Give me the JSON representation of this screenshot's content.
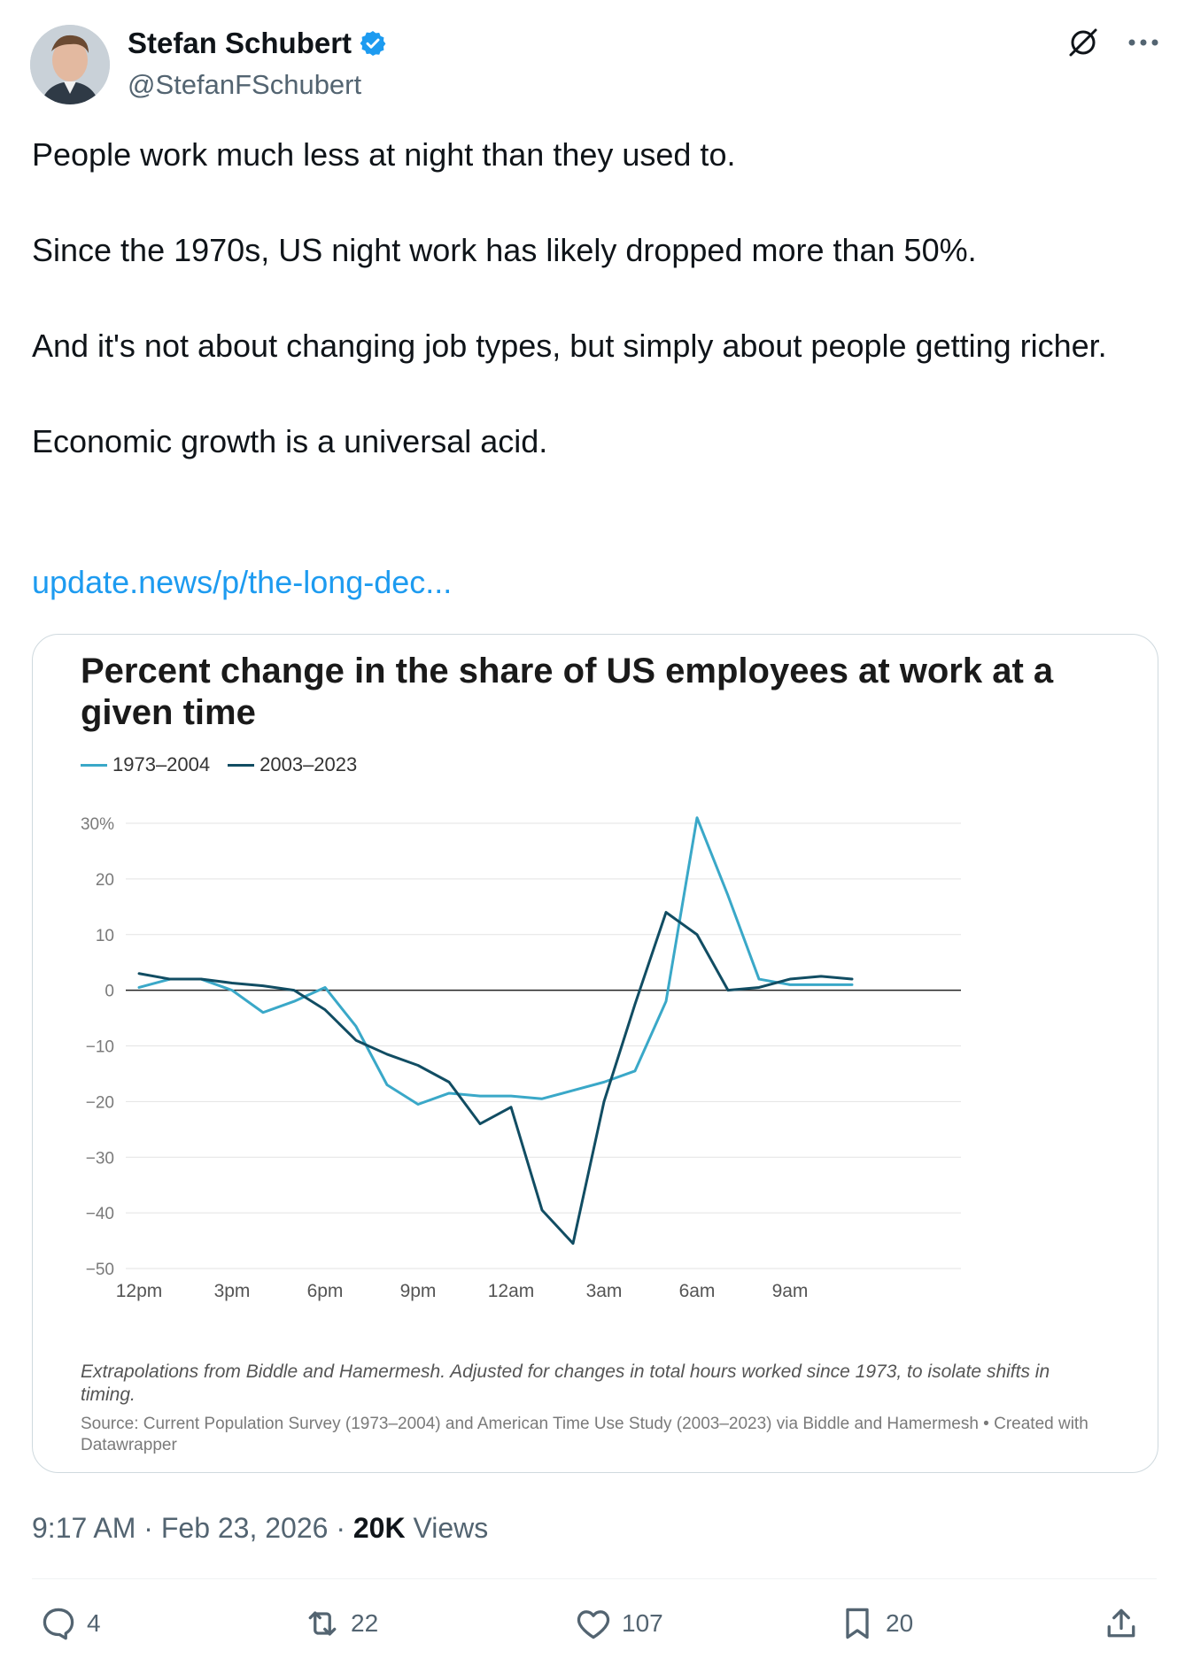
{
  "author": {
    "name": "Stefan Schubert",
    "handle": "@StefanFSchubert",
    "verified": true,
    "verified_color": "#1d9bf0"
  },
  "top_icons": [
    "grok-icon",
    "more-icon"
  ],
  "tweet": {
    "paragraphs": [
      "People work much less at night than they used to.",
      "Since the 1970s, US night work has likely dropped more than 50%.",
      "And it's not about changing job types, but simply about people getting richer.",
      "Economic growth is a universal acid."
    ],
    "link": "update.news/p/the-long-dec..."
  },
  "chart_data": {
    "type": "line",
    "title": "Percent change in the share of US employees at work at a given time",
    "series": [
      {
        "name": "1973–2004",
        "color": "#3aa8c8",
        "values": [
          0.5,
          2,
          2,
          0,
          -4,
          -2,
          0.5,
          -6.5,
          -17,
          -20.5,
          -18.5,
          -19,
          -19,
          -19.5,
          -18,
          -16.5,
          -14.5,
          -2,
          31,
          17,
          2,
          1,
          1,
          1
        ]
      },
      {
        "name": "2003–2023",
        "color": "#114d63",
        "values": [
          3,
          2,
          2,
          1.3,
          0.8,
          0,
          -3.5,
          -9,
          -11.5,
          -13.5,
          -16.5,
          -24,
          -21,
          -39.5,
          -45.5,
          -20,
          -2.5,
          14,
          10,
          0,
          0.5,
          2,
          2.5,
          2
        ]
      }
    ],
    "x_tick_labels": [
      "12pm",
      "3pm",
      "6pm",
      "9pm",
      "12am",
      "3am",
      "6am",
      "9am"
    ],
    "y_tick_labels": [
      "30%",
      "20",
      "10",
      "0",
      "−10",
      "−20",
      "−30",
      "−40",
      "−50"
    ],
    "ylim": [
      -50,
      30
    ],
    "x_start_label": "12pm",
    "x_points_per_hour": 1,
    "note": "Extrapolations from Biddle and Hamermesh. Adjusted for changes in total hours worked since 1973, to isolate shifts in timing.",
    "source": "Source: Current Population Survey (1973–2004) and American Time Use Study (2003–2023) via Biddle and Hamermesh • Created with Datawrapper"
  },
  "meta": {
    "time": "9:17 AM",
    "date": "Feb 23, 2026",
    "views_count": "20K",
    "views_label": "Views",
    "separator": "·"
  },
  "actions": {
    "replies": "4",
    "reposts": "22",
    "likes": "107",
    "bookmarks": "20"
  }
}
